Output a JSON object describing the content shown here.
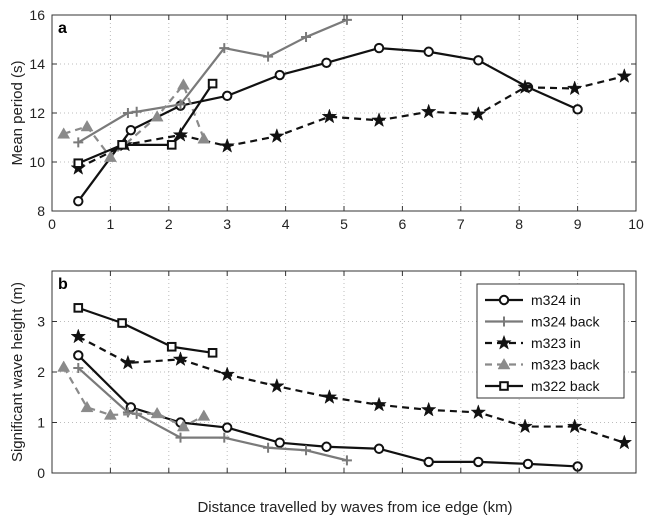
{
  "figure": {
    "xlabel": "Distance travelled by waves from ice edge (km)"
  },
  "chart_data": [
    {
      "type": "line",
      "panel_label": "a",
      "ylabel": "Mean period (s)",
      "xlim": [
        0,
        10
      ],
      "ylim": [
        8,
        16
      ],
      "xticks": [
        "0",
        "1",
        "2",
        "3",
        "4",
        "5",
        "6",
        "7",
        "8",
        "9",
        "10"
      ],
      "yticks": [
        "8",
        "10",
        "12",
        "14",
        "16"
      ],
      "grid": true,
      "legend": "none",
      "series": [
        {
          "name": "m324 in",
          "color": "#111111",
          "dash": "solid",
          "marker": "circle",
          "x": [
            0.45,
            1.35,
            2.2,
            3.0,
            3.9,
            4.7,
            5.6,
            6.45,
            7.3,
            8.15,
            9.0
          ],
          "y": [
            8.4,
            11.3,
            12.3,
            12.7,
            13.55,
            14.05,
            14.65,
            14.5,
            14.15,
            13.05,
            12.15
          ]
        },
        {
          "name": "m324 back",
          "color": "#7a7a7a",
          "dash": "solid",
          "marker": "plus",
          "x": [
            0.45,
            1.3,
            1.45,
            2.2,
            2.95,
            3.7,
            4.35,
            5.05
          ],
          "y": [
            10.8,
            12.0,
            12.05,
            12.35,
            14.65,
            14.3,
            15.1,
            15.8
          ]
        },
        {
          "name": "m323 in",
          "color": "#111111",
          "dash": "dashed",
          "marker": "star",
          "x": [
            0.45,
            1.25,
            2.2,
            3.0,
            3.85,
            4.75,
            5.6,
            6.45,
            7.3,
            8.1,
            8.95,
            9.8
          ],
          "y": [
            9.75,
            10.7,
            11.1,
            10.65,
            11.05,
            11.85,
            11.7,
            12.05,
            11.95,
            13.05,
            13.0,
            13.5
          ],
          "marker_indices": [
            0,
            1,
            2,
            3,
            4,
            5,
            6,
            7,
            8,
            9,
            10,
            11
          ]
        },
        {
          "name": "m323 back",
          "color": "#8a8a8a",
          "dash": "dashed",
          "marker": "triangle",
          "x": [
            0.2,
            0.6,
            1.0,
            1.8,
            2.25,
            2.6
          ],
          "y": [
            11.15,
            11.45,
            10.2,
            11.85,
            13.15,
            10.95
          ]
        },
        {
          "name": "m322 back",
          "color": "#111111",
          "dash": "solid",
          "marker": "square",
          "x": [
            0.45,
            1.2,
            2.05,
            2.75
          ],
          "y": [
            9.95,
            10.7,
            10.7,
            13.2
          ]
        }
      ]
    },
    {
      "type": "line",
      "panel_label": "b",
      "ylabel": "Significant wave height (m)",
      "xlim": [
        0,
        10
      ],
      "ylim": [
        0,
        4
      ],
      "xticks": [
        "0",
        "1",
        "2",
        "3",
        "4",
        "5",
        "6",
        "7",
        "8",
        "9",
        "10"
      ],
      "yticks": [
        "0",
        "1",
        "2",
        "3"
      ],
      "grid": true,
      "legend": "top-right",
      "series": [
        {
          "name": "m324 in",
          "color": "#111111",
          "dash": "solid",
          "marker": "circle",
          "x": [
            0.45,
            1.35,
            2.2,
            3.0,
            3.9,
            4.7,
            5.6,
            6.45,
            7.3,
            8.15,
            9.0
          ],
          "y": [
            2.33,
            1.3,
            1.0,
            0.9,
            0.6,
            0.52,
            0.48,
            0.22,
            0.22,
            0.18,
            0.13
          ]
        },
        {
          "name": "m324 back",
          "color": "#7a7a7a",
          "dash": "solid",
          "marker": "plus",
          "x": [
            0.45,
            1.3,
            1.45,
            2.2,
            2.95,
            3.7,
            4.35,
            5.05
          ],
          "y": [
            2.08,
            1.2,
            1.17,
            0.7,
            0.7,
            0.5,
            0.45,
            0.25
          ]
        },
        {
          "name": "m323 in",
          "color": "#111111",
          "dash": "dashed",
          "marker": "star",
          "x": [
            0.45,
            1.3,
            2.2,
            3.0,
            3.85,
            4.75,
            5.6,
            6.45,
            7.3,
            8.1,
            8.95,
            9.8
          ],
          "y": [
            2.7,
            2.18,
            2.25,
            1.95,
            1.72,
            1.5,
            1.35,
            1.25,
            1.2,
            0.92,
            0.92,
            0.6
          ]
        },
        {
          "name": "m323 back",
          "color": "#8a8a8a",
          "dash": "dashed",
          "marker": "triangle",
          "x": [
            0.2,
            0.6,
            1.0,
            1.8,
            2.25,
            2.6
          ],
          "y": [
            2.1,
            1.3,
            1.15,
            1.18,
            0.92,
            1.13
          ]
        },
        {
          "name": "m322 back",
          "color": "#111111",
          "dash": "solid",
          "marker": "square",
          "x": [
            0.45,
            1.2,
            2.05,
            2.75
          ],
          "y": [
            3.27,
            2.97,
            2.5,
            2.38
          ]
        }
      ]
    }
  ]
}
